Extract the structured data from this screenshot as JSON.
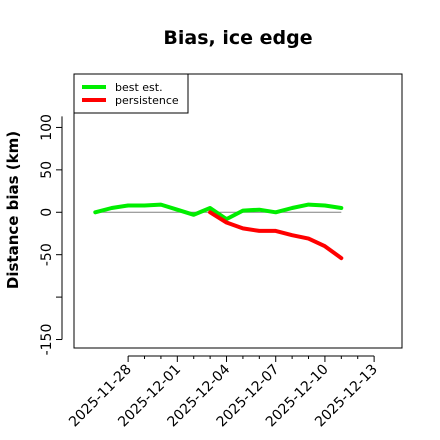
{
  "chart_data": {
    "type": "line",
    "title": "Bias, ice edge",
    "xlabel": "",
    "ylabel": "Distance bias (km)",
    "x_tick_labels": [
      "2025-11-28",
      "2025-12-01",
      "2025-12-04",
      "2025-12-07",
      "2025-12-10",
      "2025-12-13"
    ],
    "x_ticks": [
      1,
      4,
      7,
      10,
      13,
      16
    ],
    "y_ticks": [
      -150,
      -50,
      0,
      50,
      100
    ],
    "xlim": [
      -2.3,
      17.7
    ],
    "ylim": [
      -160,
      163
    ],
    "reference_line": 0,
    "legend_position": "top-left",
    "series": [
      {
        "name": "best est.",
        "color": "#00ee00",
        "x": [
          -1,
          0,
          1,
          2,
          3,
          4,
          5,
          5.5,
          6,
          7,
          8,
          9,
          10,
          11,
          12,
          13,
          14
        ],
        "y": [
          0,
          5,
          8,
          8,
          9,
          3,
          -3,
          1,
          5,
          -8,
          2,
          3,
          0,
          5,
          9,
          8,
          5
        ]
      },
      {
        "name": "persistence",
        "color": "#ff0000",
        "x": [
          6,
          7,
          8,
          9,
          10,
          11,
          12,
          13,
          14
        ],
        "y": [
          0,
          -12,
          -19,
          -22,
          -22,
          -27,
          -31,
          -40,
          -54
        ]
      }
    ]
  }
}
